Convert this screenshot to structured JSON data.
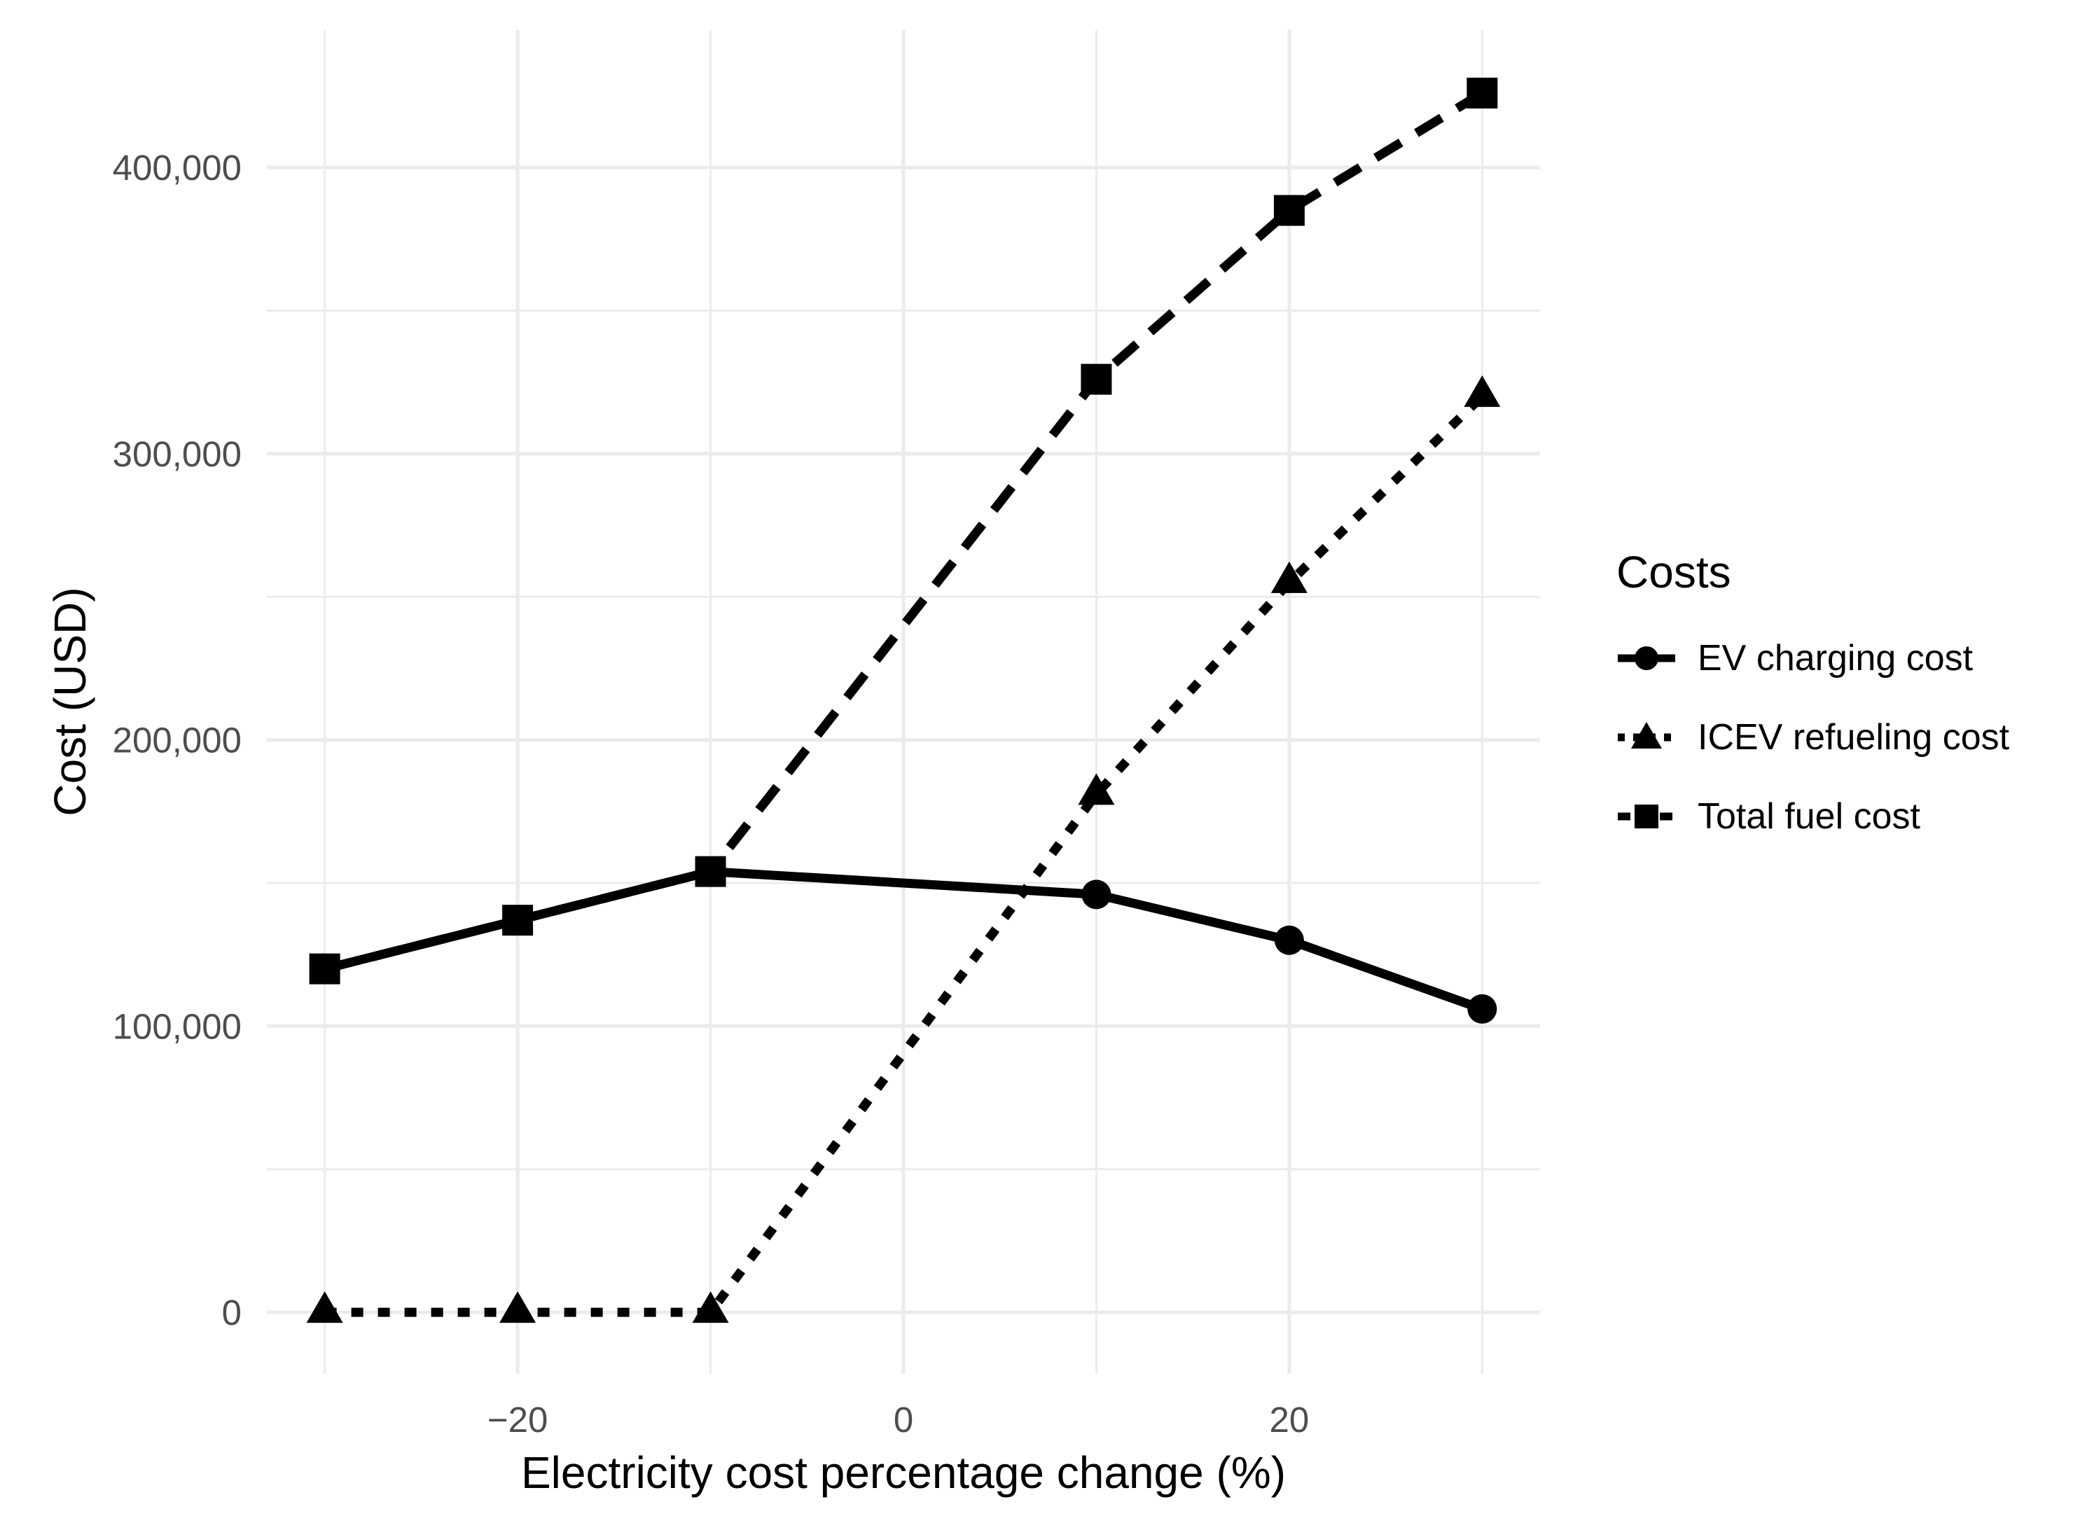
{
  "chart_data": {
    "type": "line",
    "title": "",
    "xlabel": "Electricity cost percentage change (%)",
    "ylabel": "Cost (USD)",
    "legend_title": "Costs",
    "legend_position": "right",
    "grid": true,
    "x": [
      -30,
      -20,
      -10,
      10,
      20,
      30
    ],
    "series": [
      {
        "name": "EV charging cost",
        "marker": "circle",
        "linetype": "solid",
        "values": [
          120000,
          137000,
          154000,
          146000,
          130000,
          106000
        ]
      },
      {
        "name": "ICEV refueling cost",
        "marker": "triangle",
        "linetype": "dotted",
        "values": [
          0,
          0,
          0,
          181000,
          255000,
          320000
        ]
      },
      {
        "name": "Total fuel cost",
        "marker": "square",
        "linetype": "dashed",
        "values": [
          120000,
          137000,
          154000,
          326000,
          385000,
          426000
        ]
      }
    ],
    "x_ticks": {
      "values": [
        -20,
        0,
        20
      ],
      "labels": [
        "−20",
        "0",
        "20"
      ]
    },
    "y_ticks": {
      "values": [
        0,
        100000,
        200000,
        300000,
        400000
      ],
      "labels": [
        "0",
        "100,000",
        "200,000",
        "300,000",
        "400,000"
      ]
    },
    "x_minor": [
      -30,
      -10,
      10,
      30
    ],
    "y_minor": [
      50000,
      150000,
      250000,
      350000
    ],
    "xlim": [
      -33,
      33
    ],
    "ylim": [
      -21500,
      448000
    ],
    "colors": {
      "line": "#000000",
      "grid": "#EBEBEB",
      "tick_text": "#4D4D4D",
      "text": "#000000",
      "background": "#FFFFFF"
    }
  }
}
